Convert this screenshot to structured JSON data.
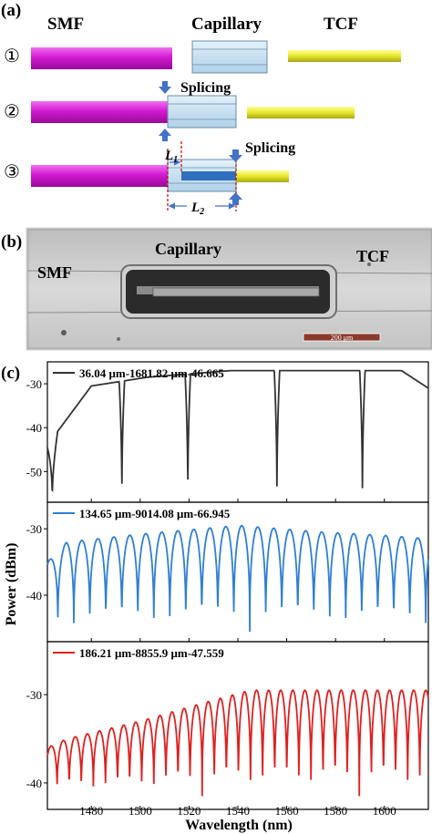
{
  "panel_a": {
    "label": "(a)",
    "headers": {
      "smf": "SMF",
      "capillary": "Capillary",
      "tcf": "TCF"
    },
    "steps": [
      "①",
      "②",
      "③"
    ],
    "splicing_1": "Splicing",
    "splicing_2": "Splicing",
    "l1": {
      "letter": "L",
      "sub": "1"
    },
    "l2": {
      "letter": "L",
      "sub": "2"
    },
    "colors": {
      "smf": "#d21ad2",
      "capillary": "#cde5f3",
      "tcf": "#e6e62e",
      "arrow": "#4472c4",
      "dashed": "#cc0000"
    }
  },
  "panel_b": {
    "label": "(b)",
    "capillary": "Capillary",
    "smf": "SMF",
    "tcf": "TCF",
    "scale_bar": "200 μm",
    "colors": {
      "scale_bar": "#8b3a2a"
    }
  },
  "panel_c": {
    "label": "(c)",
    "ylabel": "Power (dBm)",
    "xlabel": "Wavelength (nm)",
    "x_ticks": [
      1480,
      1500,
      1520,
      1540,
      1560,
      1580,
      1600
    ]
  },
  "chart_data": [
    {
      "type": "line",
      "legend": "36.04 μm-1681.82 μm-46.665",
      "color": "#333333",
      "xlim": [
        1462,
        1618
      ],
      "ylim": [
        -57,
        -25
      ],
      "y_ticks": [
        -30,
        -40,
        -50
      ],
      "dips": [
        1464,
        1492.5,
        1519.5,
        1556,
        1591
      ],
      "dip_min": -56.5,
      "envelope": [
        [
          1462,
          -44
        ],
        [
          1480,
          -30.5
        ],
        [
          1503,
          -28.5
        ],
        [
          1537,
          -27
        ],
        [
          1575,
          -27
        ],
        [
          1607,
          -27
        ],
        [
          1618,
          -31
        ]
      ]
    },
    {
      "type": "line",
      "legend": "134.65 μm-9014.08 μm-66.945",
      "color": "#2f7ed8",
      "xlim": [
        1462,
        1618
      ],
      "ylim": [
        -47,
        -26
      ],
      "y_ticks": [
        -30,
        -40
      ],
      "period": 6.55,
      "first_dip": 1463,
      "dip_min": -45.5,
      "envelope": [
        [
          1462,
          -35
        ],
        [
          1470,
          -32
        ],
        [
          1500,
          -30.8
        ],
        [
          1540,
          -29.5
        ],
        [
          1575,
          -30.5
        ],
        [
          1600,
          -31
        ],
        [
          1618,
          -31.5
        ]
      ]
    },
    {
      "type": "line",
      "legend": "186.21 μm-8855.9 μm-47.559",
      "color": "#e02020",
      "xlim": [
        1462,
        1618
      ],
      "ylim": [
        -43,
        -24
      ],
      "y_ticks": [
        -30,
        -40
      ],
      "period": 4.95,
      "first_dip": 1463.5,
      "dip_min": -41.5,
      "envelope": [
        [
          1462,
          -36
        ],
        [
          1470,
          -35
        ],
        [
          1500,
          -33
        ],
        [
          1525,
          -31
        ],
        [
          1545,
          -29.5
        ],
        [
          1575,
          -29.5
        ],
        [
          1618,
          -29.5
        ]
      ]
    }
  ]
}
